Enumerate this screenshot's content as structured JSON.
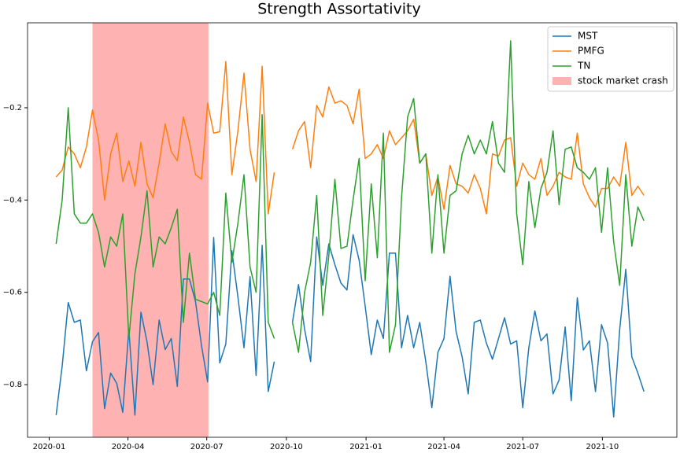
{
  "chart_data": {
    "type": "line",
    "title": "Strength Assortativity",
    "x": [
      "2020-01-09",
      "2020-01-16",
      "2020-01-23",
      "2020-01-30",
      "2020-02-06",
      "2020-02-13",
      "2020-02-20",
      "2020-02-27",
      "2020-03-05",
      "2020-03-12",
      "2020-03-19",
      "2020-03-26",
      "2020-04-02",
      "2020-04-09",
      "2020-04-16",
      "2020-04-23",
      "2020-04-30",
      "2020-05-07",
      "2020-05-14",
      "2020-05-21",
      "2020-05-28",
      "2020-06-04",
      "2020-06-11",
      "2020-06-18",
      "2020-06-25",
      "2020-07-02",
      "2020-07-09",
      "2020-07-16",
      "2020-07-23",
      "2020-07-30",
      "2020-08-06",
      "2020-08-13",
      "2020-08-20",
      "2020-08-27",
      "2020-09-03",
      "2020-09-10",
      "2020-09-17",
      "2020-09-24",
      "2020-10-01",
      "2020-10-08",
      "2020-10-15",
      "2020-10-22",
      "2020-10-29",
      "2020-11-05",
      "2020-11-12",
      "2020-11-19",
      "2020-11-26",
      "2020-12-03",
      "2020-12-10",
      "2020-12-17",
      "2020-12-24",
      "2020-12-31",
      "2021-01-07",
      "2021-01-14",
      "2021-01-21",
      "2021-01-28",
      "2021-02-04",
      "2021-02-11",
      "2021-02-18",
      "2021-02-25",
      "2021-03-04",
      "2021-03-11",
      "2021-03-18",
      "2021-03-25",
      "2021-04-01",
      "2021-04-08",
      "2021-04-15",
      "2021-04-22",
      "2021-04-29",
      "2021-05-06",
      "2021-05-13",
      "2021-05-20",
      "2021-05-27",
      "2021-06-03",
      "2021-06-10",
      "2021-06-17",
      "2021-06-24",
      "2021-07-01",
      "2021-07-08",
      "2021-07-15",
      "2021-07-22",
      "2021-07-29",
      "2021-08-05",
      "2021-08-12",
      "2021-08-19",
      "2021-08-26",
      "2021-09-02",
      "2021-09-09",
      "2021-09-16",
      "2021-09-23",
      "2021-09-30",
      "2021-10-07",
      "2021-10-14",
      "2021-10-21",
      "2021-10-28",
      "2021-11-04",
      "2021-11-11",
      "2021-11-18"
    ],
    "series": [
      {
        "name": "MST",
        "color": "#1f77b4",
        "values": [
          -0.866,
          -0.76,
          -0.622,
          -0.665,
          -0.66,
          -0.77,
          -0.707,
          -0.687,
          -0.852,
          -0.775,
          -0.797,
          -0.86,
          -0.68,
          -0.866,
          -0.643,
          -0.707,
          -0.8,
          -0.66,
          -0.724,
          -0.7,
          -0.804,
          -0.571,
          -0.571,
          -0.62,
          -0.716,
          -0.794,
          -0.481,
          -0.753,
          -0.712,
          -0.51,
          -0.61,
          -0.72,
          -0.566,
          -0.78,
          -0.498,
          -0.815,
          -0.75,
          null,
          null,
          -0.665,
          -0.583,
          -0.68,
          -0.75,
          -0.48,
          -0.585,
          -0.495,
          -0.54,
          -0.58,
          -0.595,
          -0.475,
          -0.53,
          -0.63,
          -0.735,
          -0.66,
          -0.7,
          -0.515,
          -0.515,
          -0.72,
          -0.65,
          -0.72,
          -0.665,
          -0.75,
          -0.85,
          -0.73,
          -0.7,
          -0.565,
          -0.685,
          -0.74,
          -0.82,
          -0.665,
          -0.66,
          -0.71,
          -0.745,
          -0.7,
          -0.655,
          -0.712,
          -0.705,
          -0.85,
          -0.72,
          -0.64,
          -0.705,
          -0.69,
          -0.82,
          -0.79,
          -0.675,
          -0.835,
          -0.612,
          -0.725,
          -0.705,
          -0.815,
          -0.67,
          -0.71,
          -0.87,
          -0.68,
          -0.55,
          -0.74,
          -0.775,
          -0.815
        ]
      },
      {
        "name": "PMFG",
        "color": "#ff7f0e",
        "values": [
          -0.35,
          -0.335,
          -0.285,
          -0.3,
          -0.33,
          -0.285,
          -0.205,
          -0.27,
          -0.4,
          -0.3,
          -0.255,
          -0.36,
          -0.315,
          -0.37,
          -0.275,
          -0.365,
          -0.395,
          -0.32,
          -0.235,
          -0.295,
          -0.315,
          -0.22,
          -0.275,
          -0.345,
          -0.355,
          -0.19,
          -0.255,
          -0.252,
          -0.1,
          -0.345,
          -0.25,
          -0.125,
          -0.29,
          -0.36,
          -0.11,
          -0.43,
          -0.34,
          null,
          null,
          -0.29,
          -0.25,
          -0.23,
          -0.33,
          -0.195,
          -0.22,
          -0.155,
          -0.19,
          -0.185,
          -0.195,
          -0.235,
          -0.16,
          -0.31,
          -0.3,
          -0.28,
          -0.31,
          -0.25,
          -0.28,
          -0.265,
          -0.25,
          -0.225,
          -0.32,
          -0.3,
          -0.39,
          -0.35,
          -0.42,
          -0.325,
          -0.365,
          -0.37,
          -0.385,
          -0.345,
          -0.375,
          -0.43,
          -0.3,
          -0.305,
          -0.27,
          -0.265,
          -0.37,
          -0.32,
          -0.345,
          -0.355,
          -0.31,
          -0.39,
          -0.37,
          -0.34,
          -0.35,
          -0.355,
          -0.255,
          -0.365,
          -0.395,
          -0.415,
          -0.375,
          -0.375,
          -0.35,
          -0.37,
          -0.275,
          -0.39,
          -0.37,
          -0.39
        ]
      },
      {
        "name": "TN",
        "color": "#2ca02c",
        "values": [
          -0.495,
          -0.4,
          -0.2,
          -0.43,
          -0.45,
          -0.45,
          -0.43,
          -0.47,
          -0.545,
          -0.48,
          -0.5,
          -0.43,
          -0.7,
          -0.56,
          -0.48,
          -0.38,
          -0.545,
          -0.48,
          -0.495,
          -0.46,
          -0.42,
          -0.665,
          -0.515,
          -0.615,
          -0.62,
          -0.625,
          -0.6,
          -0.65,
          -0.385,
          -0.535,
          -0.45,
          -0.345,
          -0.545,
          -0.6,
          -0.215,
          -0.665,
          -0.7,
          null,
          null,
          -0.665,
          -0.73,
          -0.6,
          -0.535,
          -0.39,
          -0.65,
          -0.52,
          -0.355,
          -0.505,
          -0.5,
          -0.4,
          -0.31,
          -0.575,
          -0.365,
          -0.525,
          -0.255,
          -0.73,
          -0.67,
          -0.395,
          -0.22,
          -0.18,
          -0.32,
          -0.3,
          -0.515,
          -0.345,
          -0.515,
          -0.39,
          -0.38,
          -0.3,
          -0.26,
          -0.3,
          -0.27,
          -0.3,
          -0.23,
          -0.32,
          -0.34,
          -0.055,
          -0.43,
          -0.54,
          -0.36,
          -0.46,
          -0.375,
          -0.34,
          -0.25,
          -0.41,
          -0.29,
          -0.285,
          -0.33,
          -0.34,
          -0.355,
          -0.33,
          -0.47,
          -0.33,
          -0.49,
          -0.585,
          -0.345,
          -0.5,
          -0.415,
          -0.445
        ]
      }
    ],
    "span": {
      "name": "stock market crash",
      "start": "2020-02-20",
      "end": "2020-07-03",
      "color": "#ffb2b2"
    },
    "xlim": [
      "2019-12-07",
      "2021-12-26"
    ],
    "xticks": [
      {
        "value": "2020-01-01",
        "label": "2020-01"
      },
      {
        "value": "2020-04-01",
        "label": "2020-04"
      },
      {
        "value": "2020-07-01",
        "label": "2020-07"
      },
      {
        "value": "2020-10-01",
        "label": "2020-10"
      },
      {
        "value": "2021-01-01",
        "label": "2021-01"
      },
      {
        "value": "2021-04-01",
        "label": "2021-04"
      },
      {
        "value": "2021-07-01",
        "label": "2021-07"
      },
      {
        "value": "2021-10-01",
        "label": "2021-10"
      }
    ],
    "ylim": [
      -0.914,
      -0.016
    ],
    "yticks": [
      {
        "value": -0.8,
        "label": "−0.8"
      },
      {
        "value": -0.6,
        "label": "−0.6"
      },
      {
        "value": -0.4,
        "label": "−0.4"
      },
      {
        "value": -0.2,
        "label": "−0.2"
      }
    ],
    "legend": "upper right"
  }
}
